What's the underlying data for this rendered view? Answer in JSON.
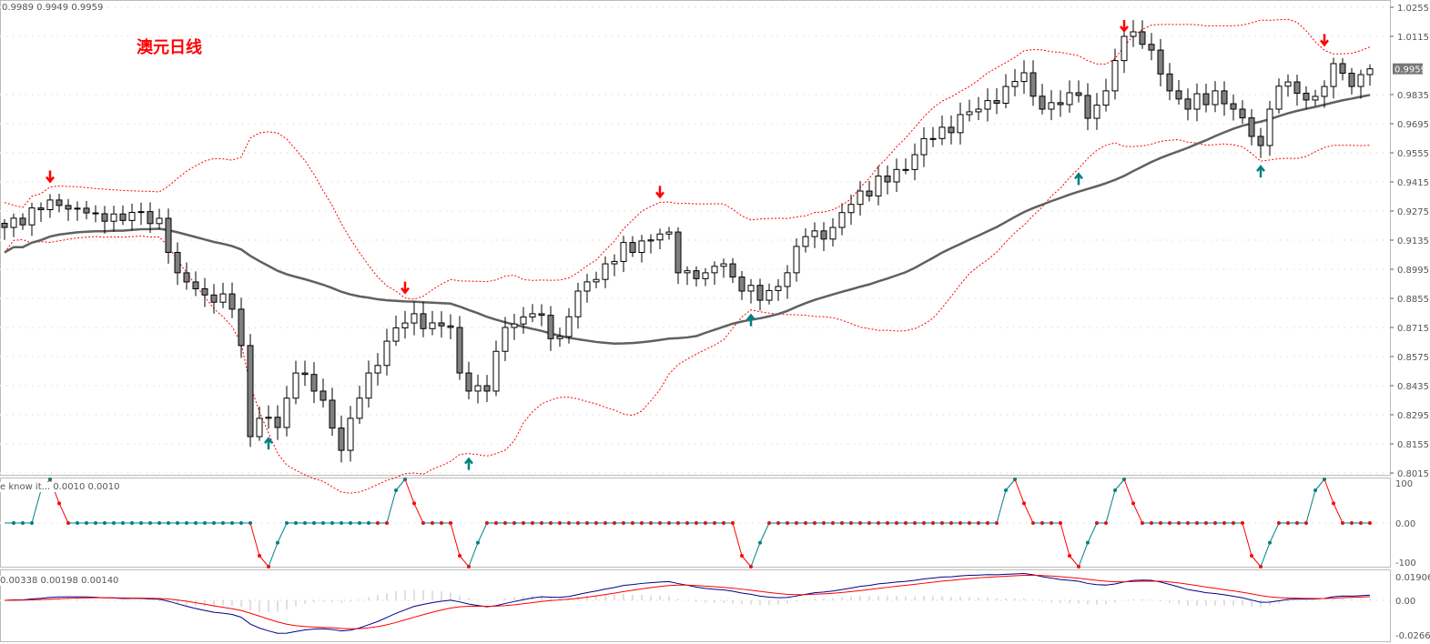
{
  "header": {
    "ohlc_readout": "0.9989 0.9949 0.9959",
    "chart_title": "澳元日线"
  },
  "panels": {
    "osc_label": "e know it... 0.0010 0.0010",
    "osc_axis": [
      "100",
      "0.00",
      "-100"
    ],
    "macd_label": "0.00338 0.00198 0.00140",
    "macd_axis": [
      "0.01906",
      "0.00",
      "-0.02666"
    ]
  },
  "colors": {
    "bull_body": "#ffffff",
    "bear_body": "#808080",
    "candle_outline": "#000000",
    "ma": "#606060",
    "bands": "#ff0000",
    "arrow_down": "#ff0000",
    "arrow_up": "#008080",
    "osc_up": "#008080",
    "osc_down": "#ff0000",
    "macd_main": "#00008b",
    "macd_signal": "#ff0000",
    "histogram": "#c0c0c0"
  },
  "chart_data": {
    "type": "candlestick",
    "ylim": [
      0.8015,
      1.0255
    ],
    "yticks": [
      "1.0255",
      "1.0115",
      "0.9835",
      "0.9695",
      "0.9555",
      "0.9415",
      "0.9275",
      "0.9135",
      "0.8995",
      "0.8855",
      "0.8715",
      "0.8575",
      "0.8435",
      "0.8295",
      "0.8155",
      "0.8015"
    ],
    "current_price": "0.9959",
    "close_anchors": [
      [
        0,
        0.9196
      ],
      [
        5,
        0.9328
      ],
      [
        10,
        0.9262
      ],
      [
        17,
        0.924
      ],
      [
        19,
        0.8978
      ],
      [
        20,
        0.8934
      ],
      [
        25,
        0.8803
      ],
      [
        26,
        0.8628
      ],
      [
        27,
        0.819
      ],
      [
        28,
        0.8278
      ],
      [
        30,
        0.8234
      ],
      [
        32,
        0.8496
      ],
      [
        35,
        0.8365
      ],
      [
        37,
        0.8124
      ],
      [
        38,
        0.8278
      ],
      [
        40,
        0.8496
      ],
      [
        42,
        0.8649
      ],
      [
        45,
        0.8781
      ],
      [
        47,
        0.8737
      ],
      [
        49,
        0.8715
      ],
      [
        50,
        0.8496
      ],
      [
        51,
        0.8409
      ],
      [
        53,
        0.8409
      ],
      [
        55,
        0.8715
      ],
      [
        58,
        0.8781
      ],
      [
        61,
        0.8671
      ],
      [
        63,
        0.889
      ],
      [
        66,
        0.9021
      ],
      [
        70,
        0.9131
      ],
      [
        73,
        0.9174
      ],
      [
        74,
        0.8978
      ],
      [
        77,
        0.8978
      ],
      [
        79,
        0.9021
      ],
      [
        81,
        0.889
      ],
      [
        83,
        0.8846
      ],
      [
        86,
        0.8978
      ],
      [
        88,
        0.9152
      ],
      [
        91,
        0.9196
      ],
      [
        94,
        0.9371
      ],
      [
        97,
        0.9415
      ],
      [
        100,
        0.9546
      ],
      [
        103,
        0.9678
      ],
      [
        107,
        0.9765
      ],
      [
        110,
        0.9874
      ],
      [
        112,
        0.994
      ],
      [
        114,
        0.9765
      ],
      [
        116,
        0.9787
      ],
      [
        118,
        0.9831
      ],
      [
        119,
        0.9721
      ],
      [
        121,
        0.9853
      ],
      [
        123,
        1.0115
      ],
      [
        124,
        1.0137
      ],
      [
        126,
        1.0049
      ],
      [
        128,
        0.9853
      ],
      [
        130,
        0.9765
      ],
      [
        133,
        0.9853
      ],
      [
        135,
        0.9765
      ],
      [
        137,
        0.9634
      ],
      [
        138,
        0.959
      ],
      [
        139,
        0.9765
      ],
      [
        141,
        0.9896
      ],
      [
        143,
        0.9809
      ],
      [
        145,
        0.9874
      ],
      [
        146,
        0.9984
      ],
      [
        148,
        0.9874
      ],
      [
        150,
        0.9959
      ]
    ],
    "down_arrows": [
      5,
      44,
      72,
      123,
      145
    ],
    "up_arrows": [
      29,
      51,
      82,
      118,
      138
    ],
    "oscillator": {
      "range": [
        -100,
        100
      ],
      "peaks": [
        [
          5,
          100
        ],
        [
          29,
          -100
        ],
        [
          44,
          100
        ],
        [
          51,
          -100
        ],
        [
          82,
          -100
        ],
        [
          111,
          100
        ],
        [
          118,
          -100
        ],
        [
          123,
          100
        ],
        [
          138,
          -100
        ],
        [
          145,
          100
        ]
      ]
    }
  }
}
